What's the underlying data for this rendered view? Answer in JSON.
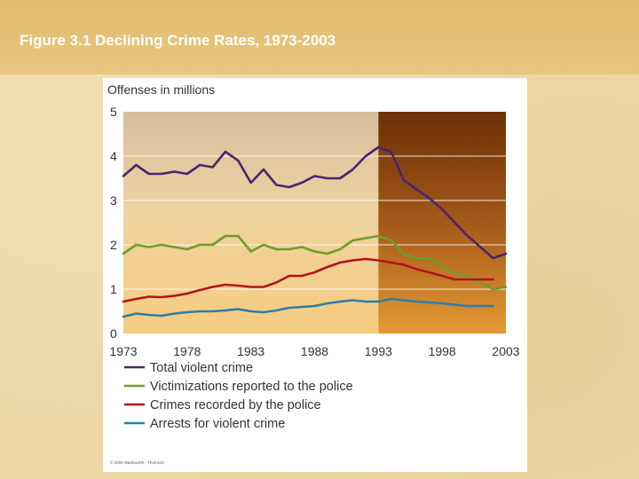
{
  "slide": {
    "title": "Figure 3.1 Declining Crime Rates, 1973-2003",
    "credit": "© 2005 Wadsworth - Thomson"
  },
  "colors": {
    "background": "#ecd7a5",
    "title_bar": "#e2bf73",
    "total_violent_crime": "#4a2470",
    "victimizations_reported": "#6c9e2c",
    "crimes_recorded": "#b5121b",
    "arrests": "#2c7fa5"
  },
  "chart_data": {
    "type": "line",
    "ylabel": "Offenses in millions",
    "ylim": [
      0,
      5
    ],
    "yticks": [
      0,
      1,
      2,
      3,
      4,
      5
    ],
    "xlim": [
      1973,
      2003
    ],
    "xticks": [
      1973,
      1978,
      1983,
      1988,
      1993,
      1998,
      2003
    ],
    "grid": true,
    "highlight_region": {
      "from": 1993,
      "to": 2003
    },
    "legend_position": "bottom",
    "series": [
      {
        "name": "Total violent crime",
        "color": "#4a2470",
        "x": [
          1973,
          1974,
          1975,
          1976,
          1977,
          1978,
          1979,
          1980,
          1981,
          1982,
          1983,
          1984,
          1985,
          1986,
          1987,
          1988,
          1989,
          1990,
          1991,
          1992,
          1993,
          1994,
          1995,
          1996,
          1997,
          1998,
          1999,
          2000,
          2001,
          2002,
          2003
        ],
        "y": [
          3.55,
          3.8,
          3.6,
          3.6,
          3.65,
          3.6,
          3.8,
          3.75,
          4.1,
          3.9,
          3.4,
          3.7,
          3.35,
          3.3,
          3.4,
          3.55,
          3.5,
          3.5,
          3.7,
          4.0,
          4.2,
          4.1,
          3.45,
          3.25,
          3.05,
          2.8,
          2.5,
          2.2,
          1.95,
          1.7,
          1.8
        ]
      },
      {
        "name": "Victimizations reported to the police",
        "color": "#6c9e2c",
        "x": [
          1973,
          1974,
          1975,
          1976,
          1977,
          1978,
          1979,
          1980,
          1981,
          1982,
          1983,
          1984,
          1985,
          1986,
          1987,
          1988,
          1989,
          1990,
          1991,
          1992,
          1993,
          1994,
          1995,
          1996,
          1997,
          1998,
          1999,
          2000,
          2001,
          2002,
          2003
        ],
        "y": [
          1.8,
          2.0,
          1.95,
          2.0,
          1.95,
          1.9,
          2.0,
          2.0,
          2.2,
          2.2,
          1.85,
          2.0,
          1.9,
          1.9,
          1.95,
          1.85,
          1.8,
          1.9,
          2.1,
          2.15,
          2.2,
          2.1,
          1.8,
          1.7,
          1.7,
          1.5,
          1.35,
          1.3,
          1.15,
          1.0,
          1.05
        ]
      },
      {
        "name": "Crimes recorded by the police",
        "color": "#b5121b",
        "x": [
          1973,
          1974,
          1975,
          1976,
          1977,
          1978,
          1979,
          1980,
          1981,
          1982,
          1983,
          1984,
          1985,
          1986,
          1987,
          1988,
          1989,
          1990,
          1991,
          1992,
          1993,
          1994,
          1995,
          1996,
          1997,
          1998,
          1999,
          2000,
          2001,
          2002
        ],
        "y": [
          0.72,
          0.78,
          0.83,
          0.82,
          0.85,
          0.9,
          0.98,
          1.05,
          1.1,
          1.08,
          1.05,
          1.05,
          1.15,
          1.3,
          1.3,
          1.38,
          1.5,
          1.6,
          1.65,
          1.68,
          1.65,
          1.6,
          1.55,
          1.45,
          1.38,
          1.3,
          1.22,
          1.22,
          1.22,
          1.22
        ]
      },
      {
        "name": "Arrests for violent crime",
        "color": "#2c7fa5",
        "x": [
          1973,
          1974,
          1975,
          1976,
          1977,
          1978,
          1979,
          1980,
          1981,
          1982,
          1983,
          1984,
          1985,
          1986,
          1987,
          1988,
          1989,
          1990,
          1991,
          1992,
          1993,
          1994,
          1995,
          1996,
          1997,
          1998,
          1999,
          2000,
          2001,
          2002
        ],
        "y": [
          0.38,
          0.45,
          0.42,
          0.4,
          0.45,
          0.48,
          0.5,
          0.5,
          0.52,
          0.55,
          0.5,
          0.48,
          0.52,
          0.58,
          0.6,
          0.62,
          0.68,
          0.72,
          0.75,
          0.72,
          0.72,
          0.78,
          0.75,
          0.72,
          0.7,
          0.68,
          0.65,
          0.62,
          0.62,
          0.62
        ]
      }
    ]
  }
}
